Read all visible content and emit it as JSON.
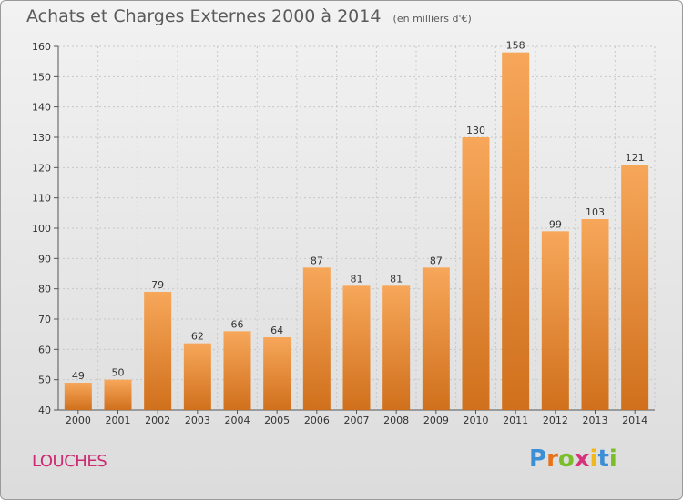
{
  "title": "Achats et Charges Externes 2000 à 2014",
  "subtitle": "(en milliers d'€)",
  "place": "LOUCHES",
  "brand": {
    "text": "Proxiti",
    "letter_colors": [
      "#3a8fd6",
      "#e8731c",
      "#7abf2a",
      "#d6337a",
      "#f1b81d",
      "#3a8fd6",
      "#7abf2a"
    ]
  },
  "colors": {
    "bar_top": "#f7a75a",
    "bar_bottom": "#d0701c",
    "grid": "#c8c8c8",
    "title": "#5a5a5a",
    "place": "#cc2a72"
  },
  "chart_data": {
    "type": "bar",
    "title": "Achats et Charges Externes 2000 à 2014",
    "subtitle": "(en milliers d'€)",
    "xlabel": "",
    "ylabel": "",
    "categories": [
      "2000",
      "2001",
      "2002",
      "2003",
      "2004",
      "2005",
      "2006",
      "2007",
      "2008",
      "2009",
      "2010",
      "2011",
      "2012",
      "2013",
      "2014"
    ],
    "values": [
      49,
      50,
      79,
      62,
      66,
      64,
      87,
      81,
      81,
      87,
      130,
      158,
      99,
      103,
      121
    ],
    "ylim": [
      40,
      160
    ],
    "yticks": [
      40,
      50,
      60,
      70,
      80,
      90,
      100,
      110,
      120,
      130,
      140,
      150,
      160
    ],
    "grid": true
  }
}
